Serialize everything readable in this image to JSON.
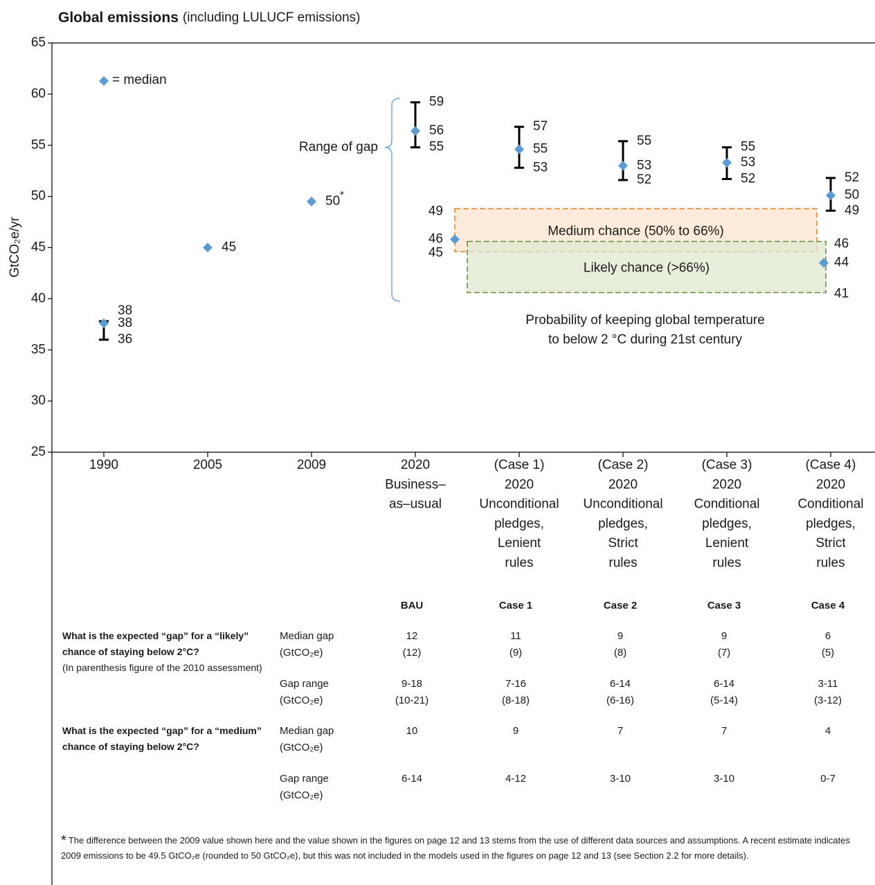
{
  "chart_data": {
    "type": "dot-range",
    "title": "Global emissions",
    "subtitle": "(including LULUCF emissions)",
    "y_label": "GtCO₂e/yr",
    "categories": [
      [
        "1990"
      ],
      [
        "2005"
      ],
      [
        "2009"
      ],
      [
        "2020",
        "Business–",
        "as–usual"
      ],
      [
        "(Case 1)",
        "2020",
        "Unconditional",
        "pledges,",
        "Lenient",
        "rules"
      ],
      [
        "(Case 2)",
        "2020",
        "Unconditional",
        "pledges,",
        "Strict",
        "rules"
      ],
      [
        "(Case 3)",
        "2020",
        "Conditional",
        "pledges,",
        "Lenient",
        "rules"
      ],
      [
        "(Case 4)",
        "2020",
        "Conditional",
        "pledges,",
        "Strict",
        "rules"
      ]
    ],
    "series": [
      {
        "name": "= median",
        "color": "#5b9bd5",
        "values": [
          37.6,
          45,
          49.5,
          56.4,
          54.6,
          53,
          53.3,
          50.1
        ],
        "value_labels": [
          "38",
          "45",
          "50*",
          "56",
          "55",
          "53",
          "53",
          "50"
        ]
      }
    ],
    "ranges": {
      "color": "#000000",
      "low": [
        36,
        null,
        null,
        54.8,
        52.8,
        51.6,
        51.7,
        48.6
      ],
      "high": [
        37.8,
        null,
        null,
        59.2,
        56.8,
        55.4,
        54.8,
        51.8
      ],
      "low_labels": [
        "36",
        null,
        null,
        "55",
        "53",
        "52",
        "52",
        "49"
      ],
      "high_labels": [
        "38",
        null,
        null,
        "59",
        "57",
        "55",
        "55",
        "52"
      ]
    },
    "bands": [
      {
        "name": "Medium chance (50% to 66%)",
        "color": "#e8862a",
        "fill": "#fbe3cf",
        "low": 44.6,
        "high": 48.8,
        "median": 45.8,
        "low_label": "45",
        "high_label": "49",
        "median_label": "46"
      },
      {
        "name": "Likely chance (>66%)",
        "color": "#6b8e3a",
        "fill": "#dfe9d0",
        "low": 40.6,
        "high": 45.6,
        "median": 43.5,
        "low_label": "41",
        "high_label": "46",
        "median_label": "44"
      }
    ],
    "range_annotation": "Range of gap",
    "band_caption": [
      "Probability of keeping global temperature",
      "to below 2 °C during 21st century"
    ],
    "ylim": [
      25,
      65
    ],
    "yticks": [
      25,
      30,
      35,
      40,
      45,
      50,
      55,
      60,
      65
    ]
  },
  "table": {
    "columns": [
      "BAU",
      "Case 1",
      "Case 2",
      "Case 3",
      "Case 4"
    ],
    "sections": [
      {
        "question": "What is the expected “gap” for a “likely” chance of staying below 2°C?",
        "note": "(In parenthesis figure of the 2010 assessment)",
        "rows": [
          {
            "label": [
              "Median gap",
              "(GtCO₂e)"
            ],
            "cells": [
              [
                "12",
                "(12)"
              ],
              [
                "11",
                "(9)"
              ],
              [
                "9",
                "(8)"
              ],
              [
                "9",
                "(7)"
              ],
              [
                "6",
                "(5)"
              ]
            ]
          },
          {
            "label": [
              "Gap range",
              "(GtCO₂e)"
            ],
            "cells": [
              [
                "9-18",
                "(10-21)"
              ],
              [
                "7-16",
                "(8-18)"
              ],
              [
                "6-14",
                "(6-16)"
              ],
              [
                "6-14",
                "(5-14)"
              ],
              [
                "3-11",
                "(3-12)"
              ]
            ]
          }
        ]
      },
      {
        "question": "What is the expected “gap” for a “medium” chance of staying below 2°C?",
        "rows": [
          {
            "label": [
              "Median gap",
              "(GtCO₂e)"
            ],
            "cells": [
              [
                "10"
              ],
              [
                "9"
              ],
              [
                "7"
              ],
              [
                "7"
              ],
              [
                "4"
              ]
            ]
          },
          {
            "label": [
              "Gap range",
              "(GtCO₂e)"
            ],
            "cells": [
              [
                "6-14"
              ],
              [
                "4-12"
              ],
              [
                "3-10"
              ],
              [
                "3-10"
              ],
              [
                "0-7"
              ]
            ]
          }
        ]
      }
    ]
  },
  "footnote": {
    "mark": "*",
    "text": "The difference between the 2009 value shown here and the value shown in the figures on page 12 and 13 stems from the use of different data sources and assumptions. A recent estimate indicates 2009 emissions to be 49.5 GtCO₂e (rounded to 50 GtCO₂e), but this was not included in the models used in the figures on page 12 and 13 (see Section 2.2 for more details)."
  }
}
